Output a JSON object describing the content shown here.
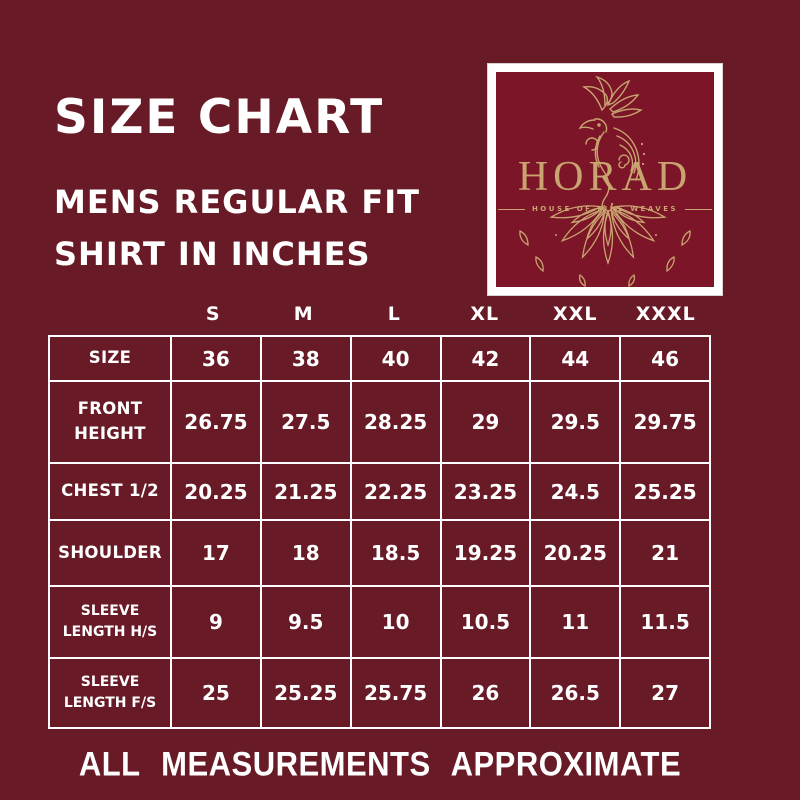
{
  "page": {
    "title": "SIZE CHART",
    "subtitle_line1": "MENS REGULAR FIT",
    "subtitle_line2": "SHIRT IN INCHES",
    "footer": "ALL MEASUREMENTS APPROXIMATE"
  },
  "logo": {
    "brand": "HORAD",
    "tagline": "HOUSE OF FINE WEAVES",
    "icon": "peacock-mandala-icon"
  },
  "colors": {
    "background": "#681A26",
    "logo_inner_background": "#7B1527",
    "logo_gold": "#C9A470",
    "table_border": "#FFFFFF",
    "text": "#FFFFFF"
  },
  "table": {
    "size_headers": [
      "S",
      "M",
      "L",
      "XL",
      "XXL",
      "XXXL"
    ],
    "rows": [
      {
        "label": "SIZE",
        "values": [
          "36",
          "38",
          "40",
          "42",
          "44",
          "46"
        ]
      },
      {
        "label": "FRONT HEIGHT",
        "values": [
          "26.75",
          "27.5",
          "28.25",
          "29",
          "29.5",
          "29.75"
        ]
      },
      {
        "label": "CHEST 1/2",
        "values": [
          "20.25",
          "21.25",
          "22.25",
          "23.25",
          "24.5",
          "25.25"
        ]
      },
      {
        "label": "SHOULDER",
        "values": [
          "17",
          "18",
          "18.5",
          "19.25",
          "20.25",
          "21"
        ]
      },
      {
        "label": "SLEEVE LENGTH H/S",
        "values": [
          "9",
          "9.5",
          "10",
          "10.5",
          "11",
          "11.5"
        ]
      },
      {
        "label": "SLEEVE LENGTH F/S",
        "values": [
          "25",
          "25.25",
          "25.75",
          "26",
          "26.5",
          "27"
        ]
      }
    ]
  },
  "chart_data": {
    "type": "table",
    "title": "SIZE CHART",
    "subtitle": "MENS REGULAR FIT SHIRT IN INCHES",
    "unit": "inches",
    "columns": [
      "",
      "S",
      "M",
      "L",
      "XL",
      "XXL",
      "XXXL"
    ],
    "rows": [
      [
        "SIZE",
        36,
        38,
        40,
        42,
        44,
        46
      ],
      [
        "FRONT HEIGHT",
        26.75,
        27.5,
        28.25,
        29,
        29.5,
        29.75
      ],
      [
        "CHEST 1/2",
        20.25,
        21.25,
        22.25,
        23.25,
        24.5,
        25.25
      ],
      [
        "SHOULDER",
        17,
        18,
        18.5,
        19.25,
        20.25,
        21
      ],
      [
        "SLEEVE LENGTH H/S",
        9,
        9.5,
        10,
        10.5,
        11,
        11.5
      ],
      [
        "SLEEVE LENGTH F/S",
        25,
        25.25,
        25.75,
        26,
        26.5,
        27
      ]
    ],
    "footnote": "ALL MEASUREMENTS APPROXIMATE"
  }
}
